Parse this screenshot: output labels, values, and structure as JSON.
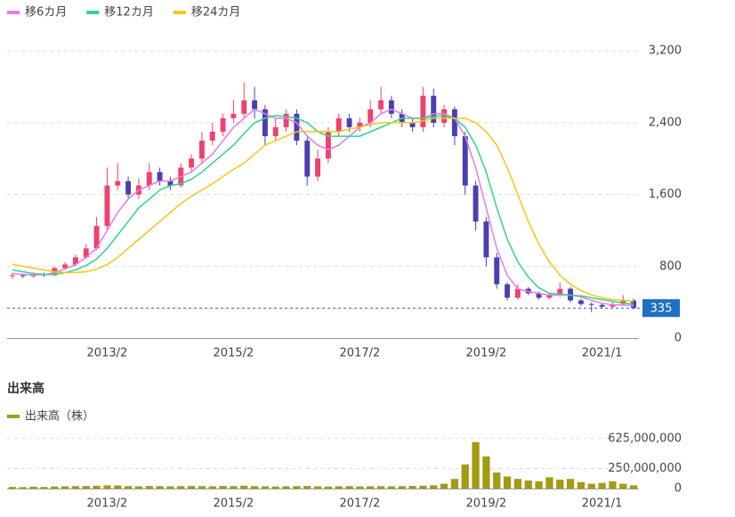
{
  "chart_data": [
    {
      "type": "candlestick",
      "categories": [
        null,
        null,
        null,
        null,
        null,
        null,
        null,
        null,
        null,
        "2013/2",
        null,
        null,
        null,
        null,
        null,
        null,
        null,
        null,
        null,
        null,
        null,
        "2015/2",
        null,
        null,
        null,
        null,
        null,
        null,
        null,
        null,
        null,
        null,
        null,
        "2017/2",
        null,
        null,
        null,
        null,
        null,
        null,
        null,
        null,
        null,
        null,
        null,
        "2019/2",
        null,
        null,
        null,
        null,
        null,
        null,
        null,
        null,
        null,
        null,
        "2021/1",
        null,
        null,
        null
      ],
      "open": [
        690,
        700,
        690,
        710,
        700,
        780,
        820,
        900,
        1000,
        1250,
        1700,
        1750,
        1600,
        1700,
        1850,
        1750,
        1700,
        1900,
        2000,
        2200,
        2300,
        2450,
        2500,
        2650,
        2550,
        2250,
        2350,
        2500,
        2200,
        1800,
        2000,
        2300,
        2450,
        2350,
        2400,
        2550,
        2650,
        2500,
        2400,
        2350,
        2700,
        2400,
        2550,
        2250,
        1700,
        1300,
        900,
        600,
        450,
        550,
        500,
        450,
        480,
        550,
        420,
        380,
        370,
        350,
        380,
        420
      ],
      "high": [
        730,
        720,
        730,
        730,
        800,
        850,
        930,
        1050,
        1350,
        1900,
        1950,
        1800,
        1780,
        1950,
        1900,
        1800,
        1950,
        2050,
        2300,
        2400,
        2500,
        2650,
        2850,
        2800,
        2600,
        2450,
        2550,
        2550,
        2250,
        2100,
        2350,
        2500,
        2500,
        2450,
        2650,
        2800,
        2700,
        2550,
        2450,
        2800,
        2780,
        2600,
        2580,
        2300,
        1750,
        1350,
        950,
        620,
        600,
        570,
        520,
        500,
        620,
        570,
        440,
        400,
        390,
        400,
        480,
        440
      ],
      "low": [
        660,
        670,
        670,
        680,
        690,
        760,
        800,
        880,
        980,
        1200,
        1650,
        1550,
        1550,
        1650,
        1700,
        1650,
        1680,
        1850,
        1950,
        2150,
        2250,
        2400,
        2450,
        2450,
        2150,
        2200,
        2300,
        2150,
        1700,
        1750,
        1950,
        2250,
        2300,
        2300,
        2350,
        2500,
        2450,
        2350,
        2300,
        2300,
        2350,
        2350,
        2150,
        1600,
        1200,
        800,
        550,
        420,
        430,
        480,
        430,
        430,
        460,
        400,
        360,
        290,
        330,
        330,
        360,
        320
      ],
      "close": [
        700,
        690,
        710,
        700,
        780,
        820,
        900,
        1000,
        1250,
        1700,
        1750,
        1600,
        1700,
        1850,
        1750,
        1700,
        1900,
        2000,
        2200,
        2300,
        2450,
        2500,
        2650,
        2550,
        2250,
        2350,
        2500,
        2200,
        1800,
        2000,
        2300,
        2450,
        2350,
        2400,
        2550,
        2650,
        2500,
        2400,
        2350,
        2700,
        2400,
        2550,
        2250,
        1700,
        1300,
        900,
        600,
        450,
        550,
        500,
        450,
        480,
        550,
        420,
        380,
        370,
        350,
        380,
        420,
        335
      ],
      "up_color": "#f0406e",
      "down_color": "#4a3fb0",
      "last_color": "#1f6fc4",
      "series": [
        {
          "name": "移6カ月",
          "color": "#e87ae8",
          "values": [
            720,
            710,
            705,
            705,
            730,
            770,
            820,
            900,
            1000,
            1200,
            1400,
            1550,
            1650,
            1700,
            1750,
            1750,
            1800,
            1850,
            1950,
            2050,
            2200,
            2350,
            2450,
            2550,
            2500,
            2450,
            2450,
            2400,
            2250,
            2150,
            2100,
            2150,
            2250,
            2350,
            2400,
            2500,
            2550,
            2500,
            2450,
            2450,
            2500,
            2500,
            2450,
            2250,
            1900,
            1450,
            1000,
            700,
            550,
            520,
            500,
            480,
            480,
            480,
            460,
            420,
            390,
            370,
            370,
            360
          ]
        },
        {
          "name": "移12カ月",
          "color": "#2ed68a",
          "values": [
            760,
            740,
            720,
            710,
            710,
            730,
            760,
            810,
            880,
            1000,
            1150,
            1300,
            1450,
            1550,
            1650,
            1700,
            1720,
            1770,
            1850,
            1950,
            2050,
            2150,
            2280,
            2400,
            2450,
            2480,
            2470,
            2450,
            2400,
            2300,
            2250,
            2250,
            2250,
            2250,
            2300,
            2350,
            2400,
            2450,
            2450,
            2450,
            2470,
            2480,
            2450,
            2350,
            2150,
            1850,
            1450,
            1100,
            850,
            680,
            560,
            500,
            490,
            480,
            470,
            450,
            430,
            410,
            390,
            380
          ]
        },
        {
          "name": "移24カ月",
          "color": "#f5c518",
          "values": [
            820,
            800,
            780,
            760,
            740,
            730,
            730,
            740,
            770,
            820,
            900,
            1000,
            1100,
            1200,
            1300,
            1400,
            1500,
            1580,
            1650,
            1720,
            1800,
            1880,
            1950,
            2050,
            2150,
            2200,
            2250,
            2300,
            2300,
            2300,
            2300,
            2300,
            2330,
            2350,
            2380,
            2400,
            2400,
            2400,
            2400,
            2420,
            2450,
            2450,
            2450,
            2450,
            2400,
            2300,
            2150,
            1900,
            1600,
            1300,
            1050,
            850,
            700,
            600,
            530,
            480,
            450,
            430,
            420,
            410
          ]
        }
      ],
      "ylim": [
        0,
        3470
      ],
      "yticks": [
        0,
        800,
        {
          "value": 1600,
          "label": "1,600"
        },
        {
          "value": 2400,
          "label": "2,400"
        },
        {
          "value": 3200,
          "label": "3,200"
        }
      ],
      "grid": true
    },
    {
      "type": "bar",
      "title": "出来高",
      "categories": [
        null,
        null,
        null,
        null,
        null,
        null,
        null,
        null,
        null,
        "2013/2",
        null,
        null,
        null,
        null,
        null,
        null,
        null,
        null,
        null,
        null,
        null,
        "2015/2",
        null,
        null,
        null,
        null,
        null,
        null,
        null,
        null,
        null,
        null,
        null,
        "2017/2",
        null,
        null,
        null,
        null,
        null,
        null,
        null,
        null,
        null,
        null,
        null,
        "2019/2",
        null,
        null,
        null,
        null,
        null,
        null,
        null,
        null,
        null,
        null,
        "2021/1",
        null,
        null,
        null
      ],
      "series": [
        {
          "name": "出来高（株）",
          "color": "#a39b12",
          "values": [
            20000000,
            18000000,
            22000000,
            20000000,
            25000000,
            28000000,
            30000000,
            32000000,
            35000000,
            40000000,
            38000000,
            30000000,
            28000000,
            32000000,
            30000000,
            28000000,
            30000000,
            32000000,
            30000000,
            28000000,
            32000000,
            30000000,
            35000000,
            30000000,
            28000000,
            25000000,
            28000000,
            30000000,
            32000000,
            28000000,
            25000000,
            28000000,
            30000000,
            26000000,
            28000000,
            30000000,
            28000000,
            30000000,
            32000000,
            35000000,
            40000000,
            60000000,
            120000000,
            300000000,
            580000000,
            400000000,
            200000000,
            150000000,
            120000000,
            100000000,
            90000000,
            140000000,
            110000000,
            120000000,
            80000000,
            60000000,
            70000000,
            90000000,
            60000000,
            40000000
          ]
        }
      ],
      "ylim": [
        0,
        700000000
      ],
      "yticks": [
        0,
        {
          "value": 250000000,
          "label": "250,000,000"
        },
        {
          "value": 625000000,
          "label": "625,000,000"
        }
      ],
      "grid": true
    }
  ]
}
